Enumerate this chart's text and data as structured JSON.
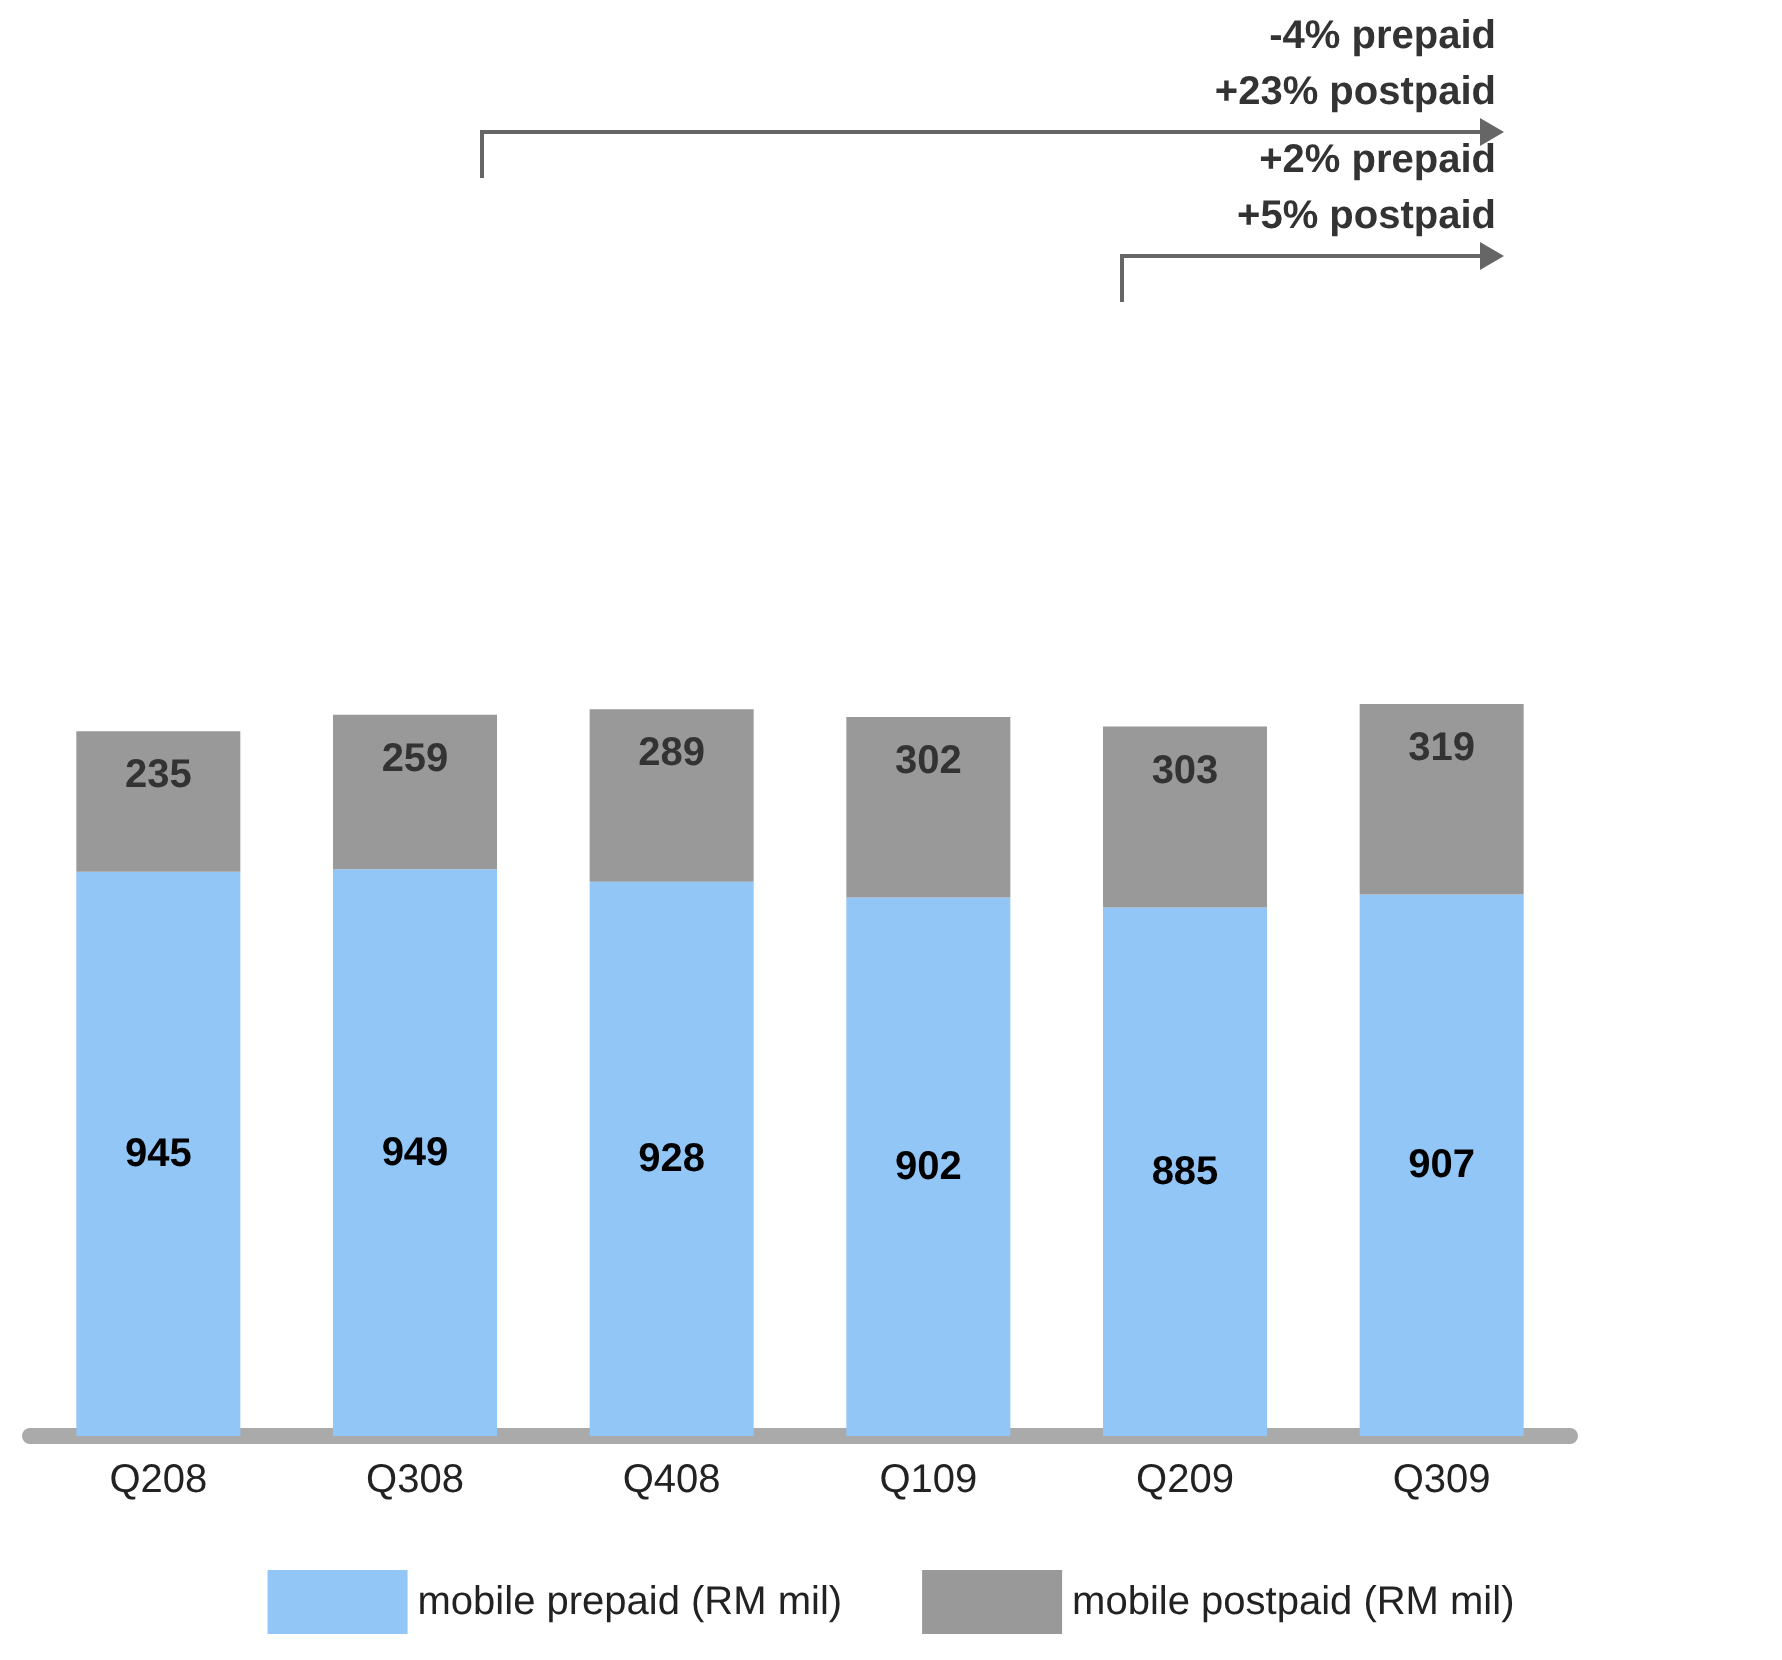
{
  "chart_data": {
    "type": "bar",
    "stacked": true,
    "data_labels": true,
    "legend": "bottom",
    "categories": [
      "Q208",
      "Q308",
      "Q408",
      "Q109",
      "Q209",
      "Q309"
    ],
    "series": [
      {
        "name": "mobile prepaid (RM mil)",
        "color": "#92c6f7",
        "values": [
          945,
          949,
          928,
          902,
          885,
          907
        ]
      },
      {
        "name": "mobile postpaid (RM mil)",
        "color": "#999999",
        "values": [
          235,
          259,
          289,
          302,
          303,
          319
        ]
      }
    ],
    "annotations": [
      "-4% prepaid\n+23% postpaid",
      "+2% prepaid\n+5% postpaid"
    ]
  }
}
